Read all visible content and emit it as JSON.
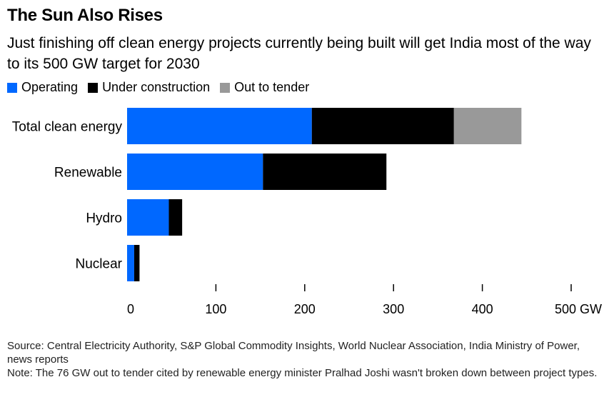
{
  "title": "The Sun Also Rises",
  "subtitle": "Just finishing off clean energy projects currently being built will get India most of the way to its 500 GW target for 2030",
  "legend": [
    {
      "label": "Operating",
      "color": "#0068ff"
    },
    {
      "label": "Under construction",
      "color": "#000000"
    },
    {
      "label": "Out to tender",
      "color": "#999999"
    }
  ],
  "chart_data": {
    "type": "bar",
    "orientation": "horizontal",
    "stacked": true,
    "categories": [
      "Total clean energy",
      "Renewable",
      "Hydro",
      "Nuclear"
    ],
    "series": [
      {
        "name": "Operating",
        "color": "#0068ff",
        "values": [
          208,
          153,
          47,
          8
        ]
      },
      {
        "name": "Under construction",
        "color": "#000000",
        "values": [
          160,
          139,
          15,
          6
        ]
      },
      {
        "name": "Out to tender",
        "color": "#999999",
        "values": [
          76,
          0,
          0,
          0
        ]
      }
    ],
    "x_ticks": [
      "0",
      "100",
      "200",
      "300",
      "400",
      "500 GW"
    ],
    "xlim": [
      0,
      500
    ],
    "grid": false
  },
  "notes": {
    "source": "Source: Central Electricity Authority, S&P Global Commodity Insights, World Nuclear Association, India Ministry of Power, news reports",
    "note": "Note: The 76 GW out to tender cited by renewable energy minister Pralhad Joshi wasn't broken down between project types."
  }
}
